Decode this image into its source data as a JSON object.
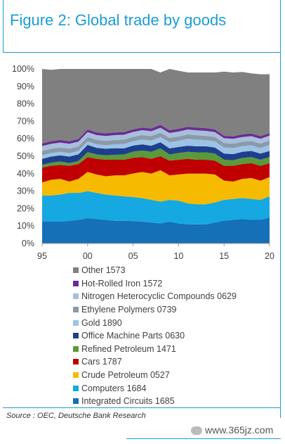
{
  "title": "Figure 2: Global trade by goods",
  "source": "Source : OEC, Deutsche Bank Research",
  "watermark": "www.365jz.com",
  "chart_data": {
    "type": "area",
    "stacked": true,
    "percent": true,
    "x": [
      1995,
      1996,
      1997,
      1998,
      1999,
      2000,
      2001,
      2002,
      2003,
      2004,
      2005,
      2006,
      2007,
      2008,
      2009,
      2010,
      2011,
      2012,
      2013,
      2014,
      2015,
      2016,
      2017,
      2018,
      2019,
      2020
    ],
    "xticks": [
      {
        "value": 1995,
        "label": "95"
      },
      {
        "value": 2000,
        "label": "00"
      },
      {
        "value": 2005,
        "label": "05"
      },
      {
        "value": 2010,
        "label": "10"
      },
      {
        "value": 2015,
        "label": "15"
      },
      {
        "value": 2020,
        "label": "20"
      }
    ],
    "yticks": [
      "0%",
      "10%",
      "20%",
      "30%",
      "40%",
      "50%",
      "60%",
      "70%",
      "80%",
      "90%",
      "100%"
    ],
    "ylim": [
      0,
      100
    ],
    "xlim": [
      1995,
      2020
    ],
    "grid": false,
    "legend_position": "bottom",
    "series": [
      {
        "name": "Integrated Circuits 1685",
        "color": "#1570b8",
        "values": [
          12.5,
          12.5,
          12.5,
          13,
          13.5,
          14.5,
          14,
          13.5,
          13,
          13,
          12.8,
          12.5,
          12,
          11.5,
          12.5,
          11.5,
          11,
          11,
          11,
          12,
          13,
          13.5,
          14,
          13.5,
          13.5,
          15
        ]
      },
      {
        "name": "Computers 1684",
        "color": "#16a8e0",
        "values": [
          15,
          15,
          15.5,
          16,
          15.5,
          15.5,
          15,
          14.5,
          14.5,
          14,
          13.8,
          13.5,
          13,
          12.5,
          12.5,
          13,
          12,
          11.5,
          11.5,
          11.5,
          12,
          12,
          12,
          12,
          11.5,
          12
        ]
      },
      {
        "name": "Crude Petroleum 0527",
        "color": "#f6bb00",
        "values": [
          7.5,
          9,
          9,
          6.5,
          8,
          11,
          10.5,
          10.5,
          11.5,
          12,
          13.5,
          15,
          15,
          18,
          14,
          15,
          17,
          17.5,
          17.5,
          16,
          11,
          10,
          11,
          12,
          11,
          11
        ]
      },
      {
        "name": "Cars 1787",
        "color": "#c00000",
        "values": [
          8.5,
          8,
          8,
          9,
          8.5,
          8.5,
          9,
          9.5,
          9,
          9,
          9,
          8.5,
          8.5,
          8,
          8.5,
          8.5,
          8.5,
          8,
          8,
          8,
          8.5,
          9,
          8.5,
          8.5,
          8.5,
          8
        ]
      },
      {
        "name": "Refined Petroleum 1471",
        "color": "#5a9a3a",
        "values": [
          1.5,
          1.8,
          2,
          1.5,
          1.8,
          2.8,
          2.5,
          2.5,
          2.8,
          3,
          3.5,
          3.8,
          4,
          4.5,
          3.5,
          3.8,
          4,
          4.2,
          4.2,
          4,
          3.5,
          3.2,
          3.5,
          3.5,
          3.5,
          3.5
        ]
      },
      {
        "name": "Office Machine Parts 0630",
        "color": "#1e3f8c",
        "values": [
          3.5,
          3.5,
          3.5,
          3.8,
          3.8,
          4.2,
          3.8,
          3.8,
          3.8,
          3.5,
          3.5,
          3.5,
          3.5,
          3.5,
          3.5,
          3.5,
          3.5,
          3.5,
          3.5,
          3.5,
          3.5,
          3.5,
          3.5,
          3.5,
          3.5,
          3.5
        ]
      },
      {
        "name": "Gold 1890",
        "color": "#9cc3e6",
        "values": [
          2,
          2,
          2,
          2,
          2,
          2,
          2,
          2,
          2.2,
          2.5,
          2.5,
          2.8,
          3,
          3,
          3.5,
          3.5,
          4,
          3.8,
          3.5,
          3.5,
          3.5,
          3.5,
          3.2,
          3.2,
          3.2,
          3.5
        ]
      },
      {
        "name": "Ethylene Polymers 0739",
        "color": "#8a9aa8",
        "values": [
          2.5,
          2.5,
          2.5,
          2.5,
          2.5,
          2.5,
          2.5,
          2.5,
          2.5,
          2.5,
          2.5,
          2.5,
          2.5,
          2.5,
          2.5,
          2.5,
          2.5,
          2.5,
          2.5,
          2.5,
          2.5,
          2.5,
          2.5,
          2.5,
          2.5,
          2.5
        ]
      },
      {
        "name": "Nitrogen Heterocyclic Compounds 0629",
        "color": "#a7bedc",
        "values": [
          2.8,
          2.8,
          2.8,
          2.8,
          2.8,
          2.8,
          2.8,
          2.8,
          2.8,
          2.8,
          2.8,
          2.8,
          2.8,
          2.8,
          2.8,
          2.8,
          2.8,
          2.8,
          2.8,
          2.8,
          2.8,
          2.8,
          2.8,
          2.8,
          2.8,
          2.8
        ]
      },
      {
        "name": "Hot-Rolled Iron 1572",
        "color": "#6a2c91",
        "values": [
          1.5,
          1.5,
          1.5,
          1.5,
          1.5,
          1.5,
          1.5,
          1.5,
          1.5,
          1.5,
          1.5,
          1.5,
          1.6,
          1.7,
          1.6,
          1.6,
          1.6,
          1.6,
          1.6,
          1.5,
          1.4,
          1.4,
          1.5,
          1.5,
          1.5,
          1.4
        ]
      },
      {
        "name": "Other 1573",
        "color": "#808080",
        "values": [
          42.7,
          40.9,
          40.7,
          41.4,
          40.1,
          34.7,
          36.4,
          36.9,
          36.4,
          36.2,
          34.6,
          33.6,
          34.1,
          30,
          35.1,
          33.3,
          31.1,
          31.6,
          31.9,
          32.7,
          36.8,
          36.6,
          35.8,
          34.5,
          35.5,
          33.8
        ]
      }
    ]
  }
}
